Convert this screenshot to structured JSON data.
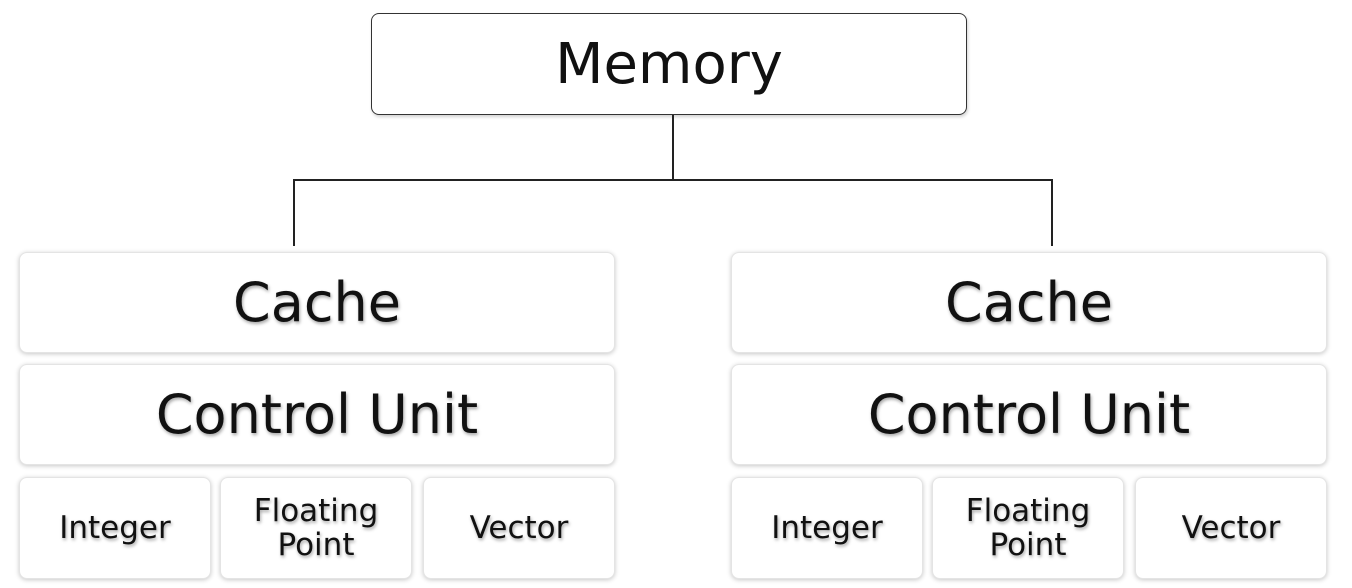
{
  "memory": {
    "label": "Memory"
  },
  "cores": [
    {
      "cache": "Cache",
      "control_unit": "Control Unit",
      "units": [
        "Integer",
        "Floating\nPoint",
        "Vector"
      ]
    },
    {
      "cache": "Cache",
      "control_unit": "Control Unit",
      "units": [
        "Integer",
        "Floating\nPoint",
        "Vector"
      ]
    }
  ]
}
